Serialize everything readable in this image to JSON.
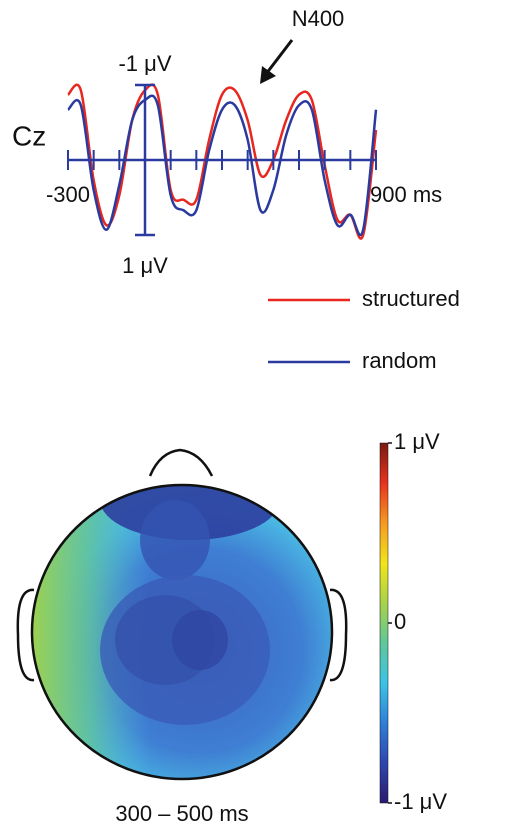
{
  "chart_data": [
    {
      "type": "line",
      "channel_label": "Cz",
      "annotation": "N400",
      "x": [
        -300,
        -250,
        -200,
        -150,
        -100,
        -50,
        0,
        50,
        100,
        150,
        200,
        250,
        300,
        350,
        400,
        450,
        500,
        550,
        600,
        650,
        700,
        750,
        800,
        850,
        900
      ],
      "series": [
        {
          "name": "structured",
          "color": "#e8271f",
          "values": [
            -0.87,
            -0.93,
            0.27,
            0.87,
            0.47,
            -0.53,
            -0.93,
            -0.87,
            0.4,
            0.53,
            0.53,
            -0.27,
            -0.87,
            -0.93,
            -0.53,
            0.2,
            0.0,
            -0.53,
            -0.87,
            -0.8,
            0.07,
            0.8,
            0.73,
            1.0,
            -0.4
          ]
        },
        {
          "name": "random",
          "color": "#2a3a9e",
          "values": [
            -0.67,
            -0.73,
            0.4,
            0.93,
            0.33,
            -0.53,
            -0.8,
            -0.73,
            0.47,
            0.67,
            0.67,
            -0.13,
            -0.67,
            -0.73,
            -0.27,
            0.67,
            0.4,
            -0.33,
            -0.73,
            -0.67,
            0.27,
            0.87,
            0.73,
            0.93,
            -0.67
          ]
        }
      ],
      "xlim": [
        -300,
        900
      ],
      "xticks": [
        -300,
        {
          "value": 900,
          "label": "900 ms"
        }
      ],
      "xtick_marks": [
        -200,
        -100,
        0,
        100,
        200,
        300,
        400,
        500,
        600,
        700,
        800
      ],
      "ylim": [
        -1.4,
        1.4
      ],
      "y_inverted": true,
      "yticks": [
        {
          "value": -1,
          "label": "-1 μV"
        },
        {
          "value": 1,
          "label": "1 μV"
        }
      ],
      "axis_color": "#2a3a9e"
    },
    {
      "type": "topomap",
      "time_window": "300 – 500 ms",
      "clim": [
        -1,
        1
      ],
      "cticks": [
        {
          "value": 1,
          "label": "1 μV"
        },
        0,
        {
          "value": -1,
          "label": "-1 μV"
        }
      ],
      "colormap": [
        "#2b1a6e",
        "#2e46b0",
        "#2f7fd6",
        "#3cc3e6",
        "#5fc79a",
        "#a8d24a",
        "#f2e41c",
        "#f59a22",
        "#e8321e",
        "#7a1a12"
      ]
    }
  ]
}
